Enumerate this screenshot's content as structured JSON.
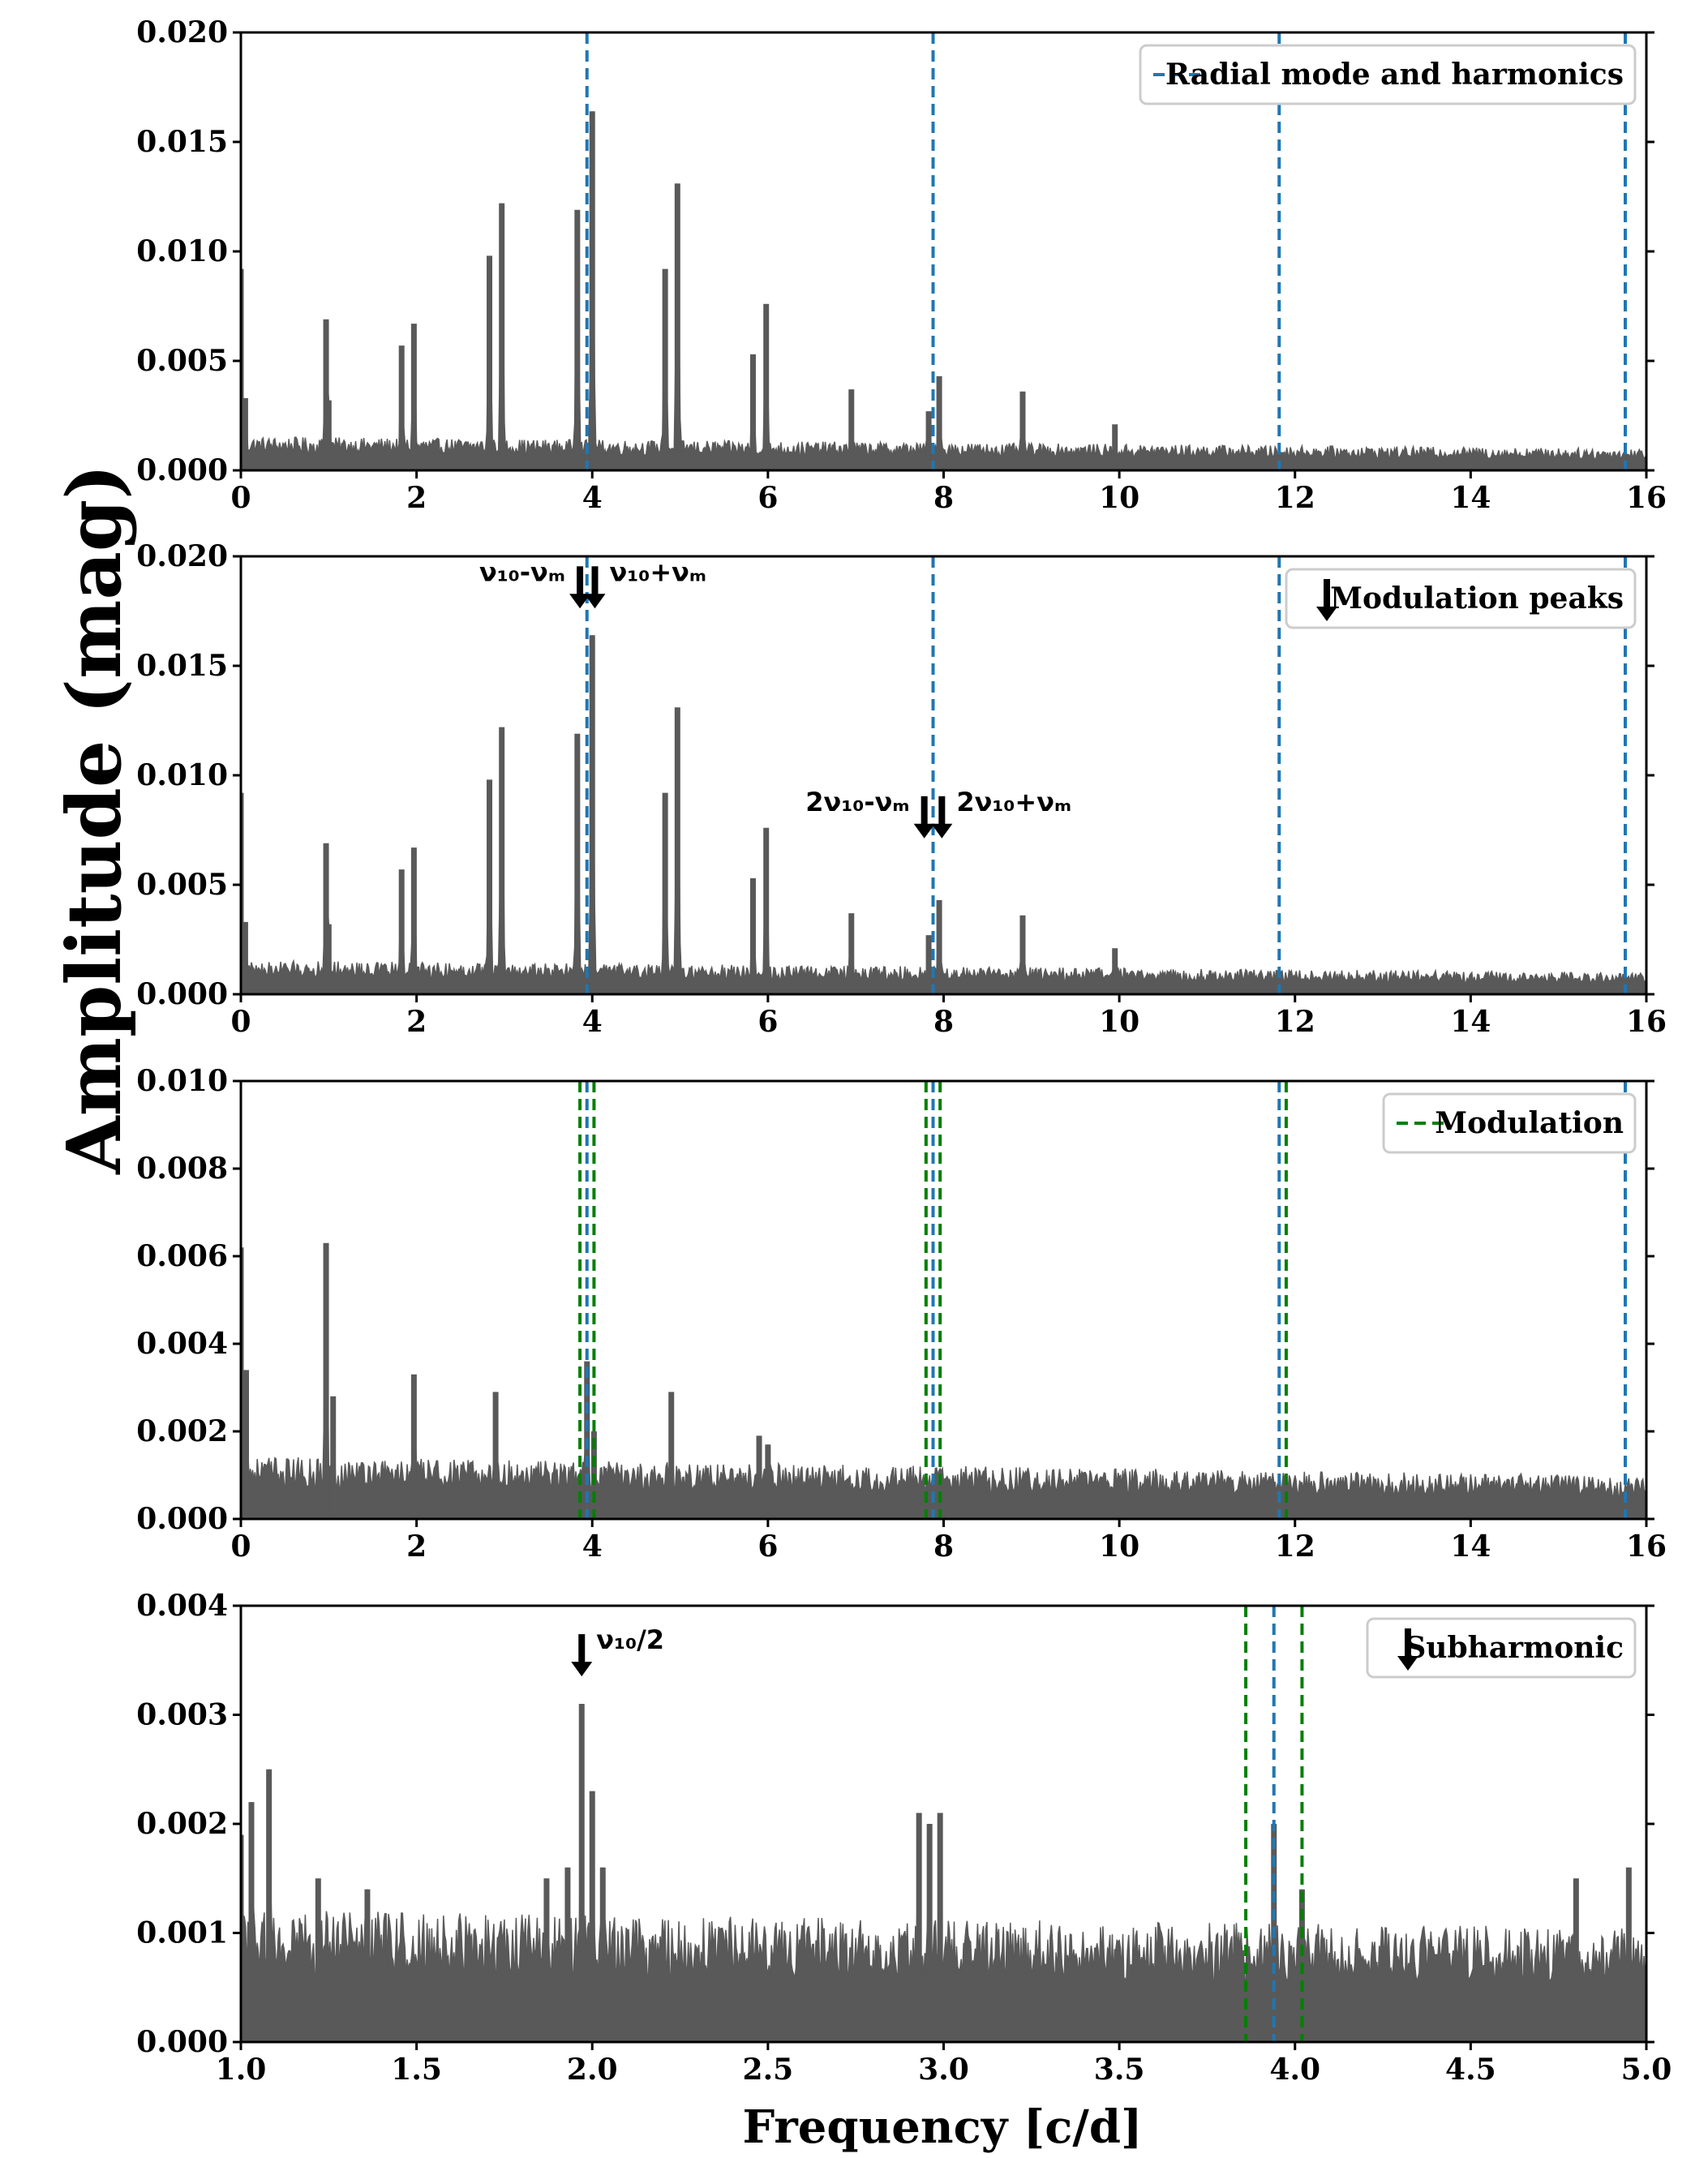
{
  "figure": {
    "ylabel": "Amplitude (mag)",
    "xlabel": "Frequency [c/d]"
  },
  "colors": {
    "spectrum": "#595959",
    "radial": "#1f77b4",
    "modulation": "#008000",
    "arrow": "#000000",
    "axis": "#000000"
  },
  "chart_data": [
    {
      "type": "line",
      "xlim": [
        0,
        16
      ],
      "ylim": [
        0,
        0.02
      ],
      "xticks": [
        "0",
        "2",
        "4",
        "6",
        "8",
        "10",
        "12",
        "14",
        "16"
      ],
      "yticks": [
        "0.000",
        "0.005",
        "0.010",
        "0.015",
        "0.020"
      ],
      "noise_level": 0.0014,
      "noise_decay_to": 0.0009,
      "peaks": [
        {
          "x": 0.0,
          "y": 0.0092
        },
        {
          "x": 0.05,
          "y": 0.0033
        },
        {
          "x": 0.97,
          "y": 0.0069
        },
        {
          "x": 1.0,
          "y": 0.0032
        },
        {
          "x": 1.83,
          "y": 0.0057
        },
        {
          "x": 1.97,
          "y": 0.0067
        },
        {
          "x": 2.83,
          "y": 0.0098
        },
        {
          "x": 2.97,
          "y": 0.0122
        },
        {
          "x": 3.83,
          "y": 0.0119
        },
        {
          "x": 4.0,
          "y": 0.0164
        },
        {
          "x": 4.83,
          "y": 0.0092
        },
        {
          "x": 4.97,
          "y": 0.0131
        },
        {
          "x": 5.83,
          "y": 0.0053
        },
        {
          "x": 5.98,
          "y": 0.0076
        },
        {
          "x": 6.95,
          "y": 0.0037
        },
        {
          "x": 7.83,
          "y": 0.0027
        },
        {
          "x": 7.95,
          "y": 0.0043
        },
        {
          "x": 8.9,
          "y": 0.0036
        },
        {
          "x": 9.95,
          "y": 0.0021
        }
      ],
      "vlines": [
        {
          "x": 3.94,
          "color": "radial"
        },
        {
          "x": 7.88,
          "color": "radial"
        },
        {
          "x": 11.82,
          "color": "radial"
        },
        {
          "x": 15.76,
          "color": "radial"
        }
      ],
      "legend": {
        "entries": [
          {
            "label": "Radial mode and harmonics",
            "marker": "dashed",
            "color": "radial"
          }
        ],
        "position": "top-right"
      },
      "annotations": []
    },
    {
      "type": "line",
      "xlim": [
        0,
        16
      ],
      "ylim": [
        0,
        0.02
      ],
      "xticks": [
        "0",
        "2",
        "4",
        "6",
        "8",
        "10",
        "12",
        "14",
        "16"
      ],
      "yticks": [
        "0.000",
        "0.005",
        "0.010",
        "0.015",
        "0.020"
      ],
      "noise_level": 0.0014,
      "noise_decay_to": 0.0009,
      "peaks": [
        {
          "x": 0.0,
          "y": 0.0092
        },
        {
          "x": 0.05,
          "y": 0.0033
        },
        {
          "x": 0.97,
          "y": 0.0069
        },
        {
          "x": 1.0,
          "y": 0.0032
        },
        {
          "x": 1.83,
          "y": 0.0057
        },
        {
          "x": 1.97,
          "y": 0.0067
        },
        {
          "x": 2.83,
          "y": 0.0098
        },
        {
          "x": 2.97,
          "y": 0.0122
        },
        {
          "x": 3.83,
          "y": 0.0119
        },
        {
          "x": 4.0,
          "y": 0.0164
        },
        {
          "x": 4.83,
          "y": 0.0092
        },
        {
          "x": 4.97,
          "y": 0.0131
        },
        {
          "x": 5.83,
          "y": 0.0053
        },
        {
          "x": 5.98,
          "y": 0.0076
        },
        {
          "x": 6.95,
          "y": 0.0037
        },
        {
          "x": 7.83,
          "y": 0.0027
        },
        {
          "x": 7.95,
          "y": 0.0043
        },
        {
          "x": 8.9,
          "y": 0.0036
        },
        {
          "x": 9.95,
          "y": 0.0021
        }
      ],
      "vlines": [
        {
          "x": 3.94,
          "color": "radial"
        },
        {
          "x": 7.88,
          "color": "radial"
        },
        {
          "x": 11.82,
          "color": "radial"
        },
        {
          "x": 15.76,
          "color": "radial"
        }
      ],
      "legend": {
        "entries": [
          {
            "label": "Modulation peaks",
            "marker": "arrow",
            "color": "arrow"
          }
        ],
        "position": "top-right"
      },
      "annotations": [
        {
          "label": "ν₁₀-νₘ",
          "x": 3.86,
          "y": 0.0191,
          "side": "left"
        },
        {
          "label": "ν₁₀+νₘ",
          "x": 4.03,
          "y": 0.0191,
          "side": "right"
        },
        {
          "label": "2ν₁₀-νₘ",
          "x": 7.78,
          "y": 0.0086,
          "side": "left"
        },
        {
          "label": "2ν₁₀+νₘ",
          "x": 7.98,
          "y": 0.0086,
          "side": "right"
        }
      ]
    },
    {
      "type": "line",
      "xlim": [
        0,
        16
      ],
      "ylim": [
        0,
        0.01
      ],
      "xticks": [
        "0",
        "2",
        "4",
        "6",
        "8",
        "10",
        "12",
        "14",
        "16"
      ],
      "yticks": [
        "0.000",
        "0.002",
        "0.004",
        "0.006",
        "0.008",
        "0.010"
      ],
      "noise_level": 0.0013,
      "noise_decay_to": 0.0009,
      "peaks": [
        {
          "x": 0.0,
          "y": 0.0062
        },
        {
          "x": 0.06,
          "y": 0.0034
        },
        {
          "x": 0.97,
          "y": 0.0063
        },
        {
          "x": 1.05,
          "y": 0.0028
        },
        {
          "x": 1.97,
          "y": 0.0033
        },
        {
          "x": 2.9,
          "y": 0.0029
        },
        {
          "x": 3.94,
          "y": 0.0036
        },
        {
          "x": 4.02,
          "y": 0.002
        },
        {
          "x": 4.9,
          "y": 0.0029
        },
        {
          "x": 5.9,
          "y": 0.0019
        },
        {
          "x": 6.0,
          "y": 0.0017
        }
      ],
      "vlines": [
        {
          "x": 3.86,
          "color": "modulation"
        },
        {
          "x": 3.94,
          "color": "radial"
        },
        {
          "x": 4.02,
          "color": "modulation"
        },
        {
          "x": 7.8,
          "color": "modulation"
        },
        {
          "x": 7.88,
          "color": "radial"
        },
        {
          "x": 7.96,
          "color": "modulation"
        },
        {
          "x": 11.82,
          "color": "radial"
        },
        {
          "x": 11.9,
          "color": "modulation"
        },
        {
          "x": 15.76,
          "color": "radial"
        }
      ],
      "legend": {
        "entries": [
          {
            "label": "Modulation",
            "marker": "dashed",
            "color": "modulation"
          }
        ],
        "position": "top-right"
      },
      "annotations": []
    },
    {
      "type": "line",
      "xlim": [
        1.0,
        5.0
      ],
      "ylim": [
        0,
        0.004
      ],
      "xticks": [
        "1.0",
        "1.5",
        "2.0",
        "2.5",
        "3.0",
        "3.5",
        "4.0",
        "4.5",
        "5.0"
      ],
      "yticks": [
        "0.000",
        "0.001",
        "0.002",
        "0.003",
        "0.004"
      ],
      "noise_level": 0.0011,
      "noise_decay_to": 0.00095,
      "peaks": [
        {
          "x": 1.0,
          "y": 0.0019
        },
        {
          "x": 1.03,
          "y": 0.0022
        },
        {
          "x": 1.08,
          "y": 0.0025
        },
        {
          "x": 1.22,
          "y": 0.0015
        },
        {
          "x": 1.36,
          "y": 0.0014
        },
        {
          "x": 1.87,
          "y": 0.0015
        },
        {
          "x": 1.93,
          "y": 0.0016
        },
        {
          "x": 1.97,
          "y": 0.0031
        },
        {
          "x": 2.0,
          "y": 0.0023
        },
        {
          "x": 2.03,
          "y": 0.0016
        },
        {
          "x": 2.93,
          "y": 0.0021
        },
        {
          "x": 2.96,
          "y": 0.002
        },
        {
          "x": 2.99,
          "y": 0.0021
        },
        {
          "x": 3.94,
          "y": 0.002
        },
        {
          "x": 4.02,
          "y": 0.0014
        },
        {
          "x": 4.8,
          "y": 0.0015
        },
        {
          "x": 4.95,
          "y": 0.0016
        }
      ],
      "vlines": [
        {
          "x": 3.86,
          "color": "modulation"
        },
        {
          "x": 3.94,
          "color": "radial"
        },
        {
          "x": 4.02,
          "color": "modulation"
        }
      ],
      "legend": {
        "entries": [
          {
            "label": "Subharmonic",
            "marker": "arrow",
            "color": "arrow"
          }
        ],
        "position": "top-right"
      },
      "annotations": [
        {
          "label": "ν₁₀/2",
          "x": 1.97,
          "y": 0.00365,
          "side": "right"
        }
      ]
    }
  ]
}
